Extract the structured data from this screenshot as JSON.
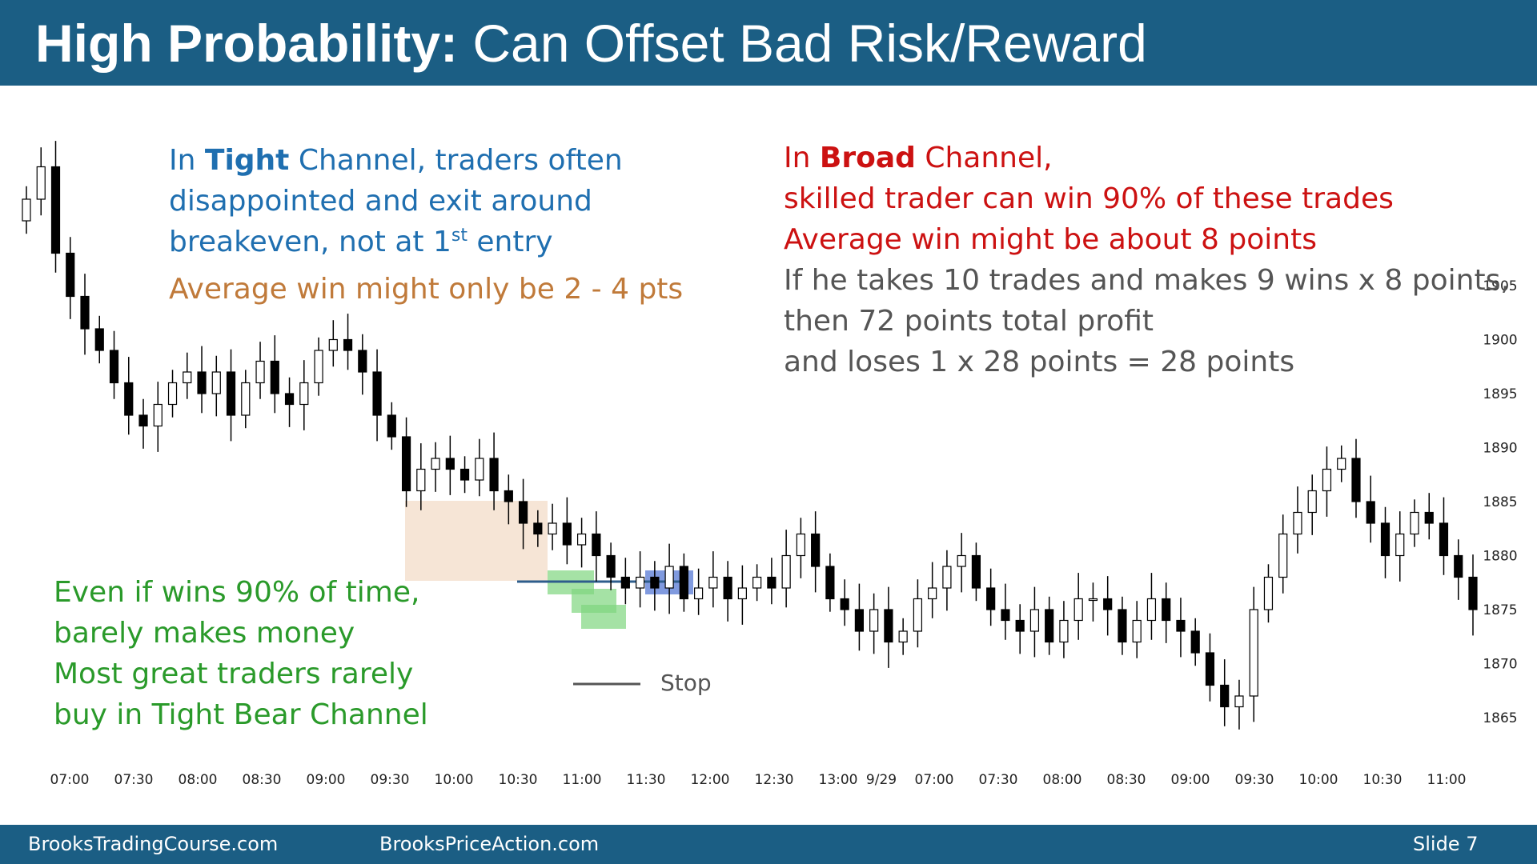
{
  "title": {
    "bold": "High Probability:",
    "rest": "Can Offset Bad Risk/Reward"
  },
  "annotations": {
    "tight": {
      "line1_pre": "In ",
      "line1_bold": "Tight",
      "line1_post": " Channel, traders often",
      "line2": "disappointed and exit around",
      "line3_pre": "breakeven, not at 1",
      "line3_sup": "st",
      "line3_post": " entry",
      "avg": "Average win might only be 2 - 4 pts"
    },
    "broad": {
      "line1_pre": "In ",
      "line1_bold": "Broad",
      "line1_post": " Channel,",
      "line2": "skilled trader can win 90% of these trades",
      "line3": "Average win might be about 8 points",
      "line4": "If he takes 10 trades and makes 9 wins x 8 points,",
      "line5": "then 72 points total profit",
      "line6": "and loses 1 x 28 points = 28 points"
    },
    "green": {
      "line1": "Even if wins 90% of time,",
      "line2": "barely makes money",
      "line3": "Most great traders rarely",
      "line4": "buy in Tight Bear Channel"
    },
    "stop_label": "Stop"
  },
  "footer": {
    "left": "BrooksTradingCourse.com",
    "middle": "BrooksPriceAction.com",
    "slide": "Slide  7"
  },
  "chart_data": {
    "type": "candlestick",
    "x_tick_labels": [
      "07:00",
      "07:30",
      "08:00",
      "08:30",
      "09:00",
      "09:30",
      "10:00",
      "10:30",
      "11:00",
      "11:30",
      "12:00",
      "12:30",
      "13:00",
      "9/29",
      "07:00",
      "07:30",
      "08:00",
      "08:30",
      "09:00",
      "09:30",
      "10:00",
      "10:30",
      "11:00"
    ],
    "y_ticks": [
      1865,
      1870,
      1875,
      1880,
      1885,
      1890,
      1895,
      1900,
      1905
    ],
    "ylim": [
      1862,
      1922
    ],
    "bar_count": 100,
    "closes": [
      1913,
      1916,
      1908,
      1904,
      1901,
      1899,
      1896,
      1893,
      1892,
      1894,
      1896,
      1897,
      1895,
      1897,
      1893,
      1896,
      1898,
      1895,
      1894,
      1896,
      1899,
      1900,
      1899,
      1897,
      1893,
      1891,
      1886,
      1888,
      1889,
      1888,
      1887,
      1889,
      1886,
      1885,
      1883,
      1882,
      1883,
      1881,
      1882,
      1880,
      1878,
      1877,
      1878,
      1877,
      1879,
      1876,
      1877,
      1878,
      1876,
      1877,
      1878,
      1877,
      1880,
      1882,
      1879,
      1876,
      1875,
      1873,
      1875,
      1872,
      1873,
      1876,
      1877,
      1879,
      1880,
      1877,
      1875,
      1874,
      1873,
      1875,
      1872,
      1874,
      1876,
      1876,
      1875,
      1872,
      1874,
      1876,
      1874,
      1873,
      1871,
      1868,
      1866,
      1867,
      1875,
      1878,
      1882,
      1884,
      1886,
      1888,
      1889,
      1885,
      1883,
      1880,
      1882,
      1884,
      1883,
      1880,
      1878,
      1875
    ],
    "opens_note": "each bar opens near prior close",
    "shaded_zones": [
      {
        "label": "tight trading range",
        "color": "#f3dcc8"
      },
      {
        "label": "buy entries",
        "color": "#7fd67f"
      },
      {
        "label": "exit",
        "color": "#4a6fd1"
      }
    ],
    "stop_line": true
  },
  "colors": {
    "header": "#1b5e84",
    "blue_text": "#1f6fb0",
    "orange_text": "#c07a3a",
    "red_text": "#cc1111",
    "green_text": "#2a9a2a",
    "gray_text": "#555555"
  }
}
